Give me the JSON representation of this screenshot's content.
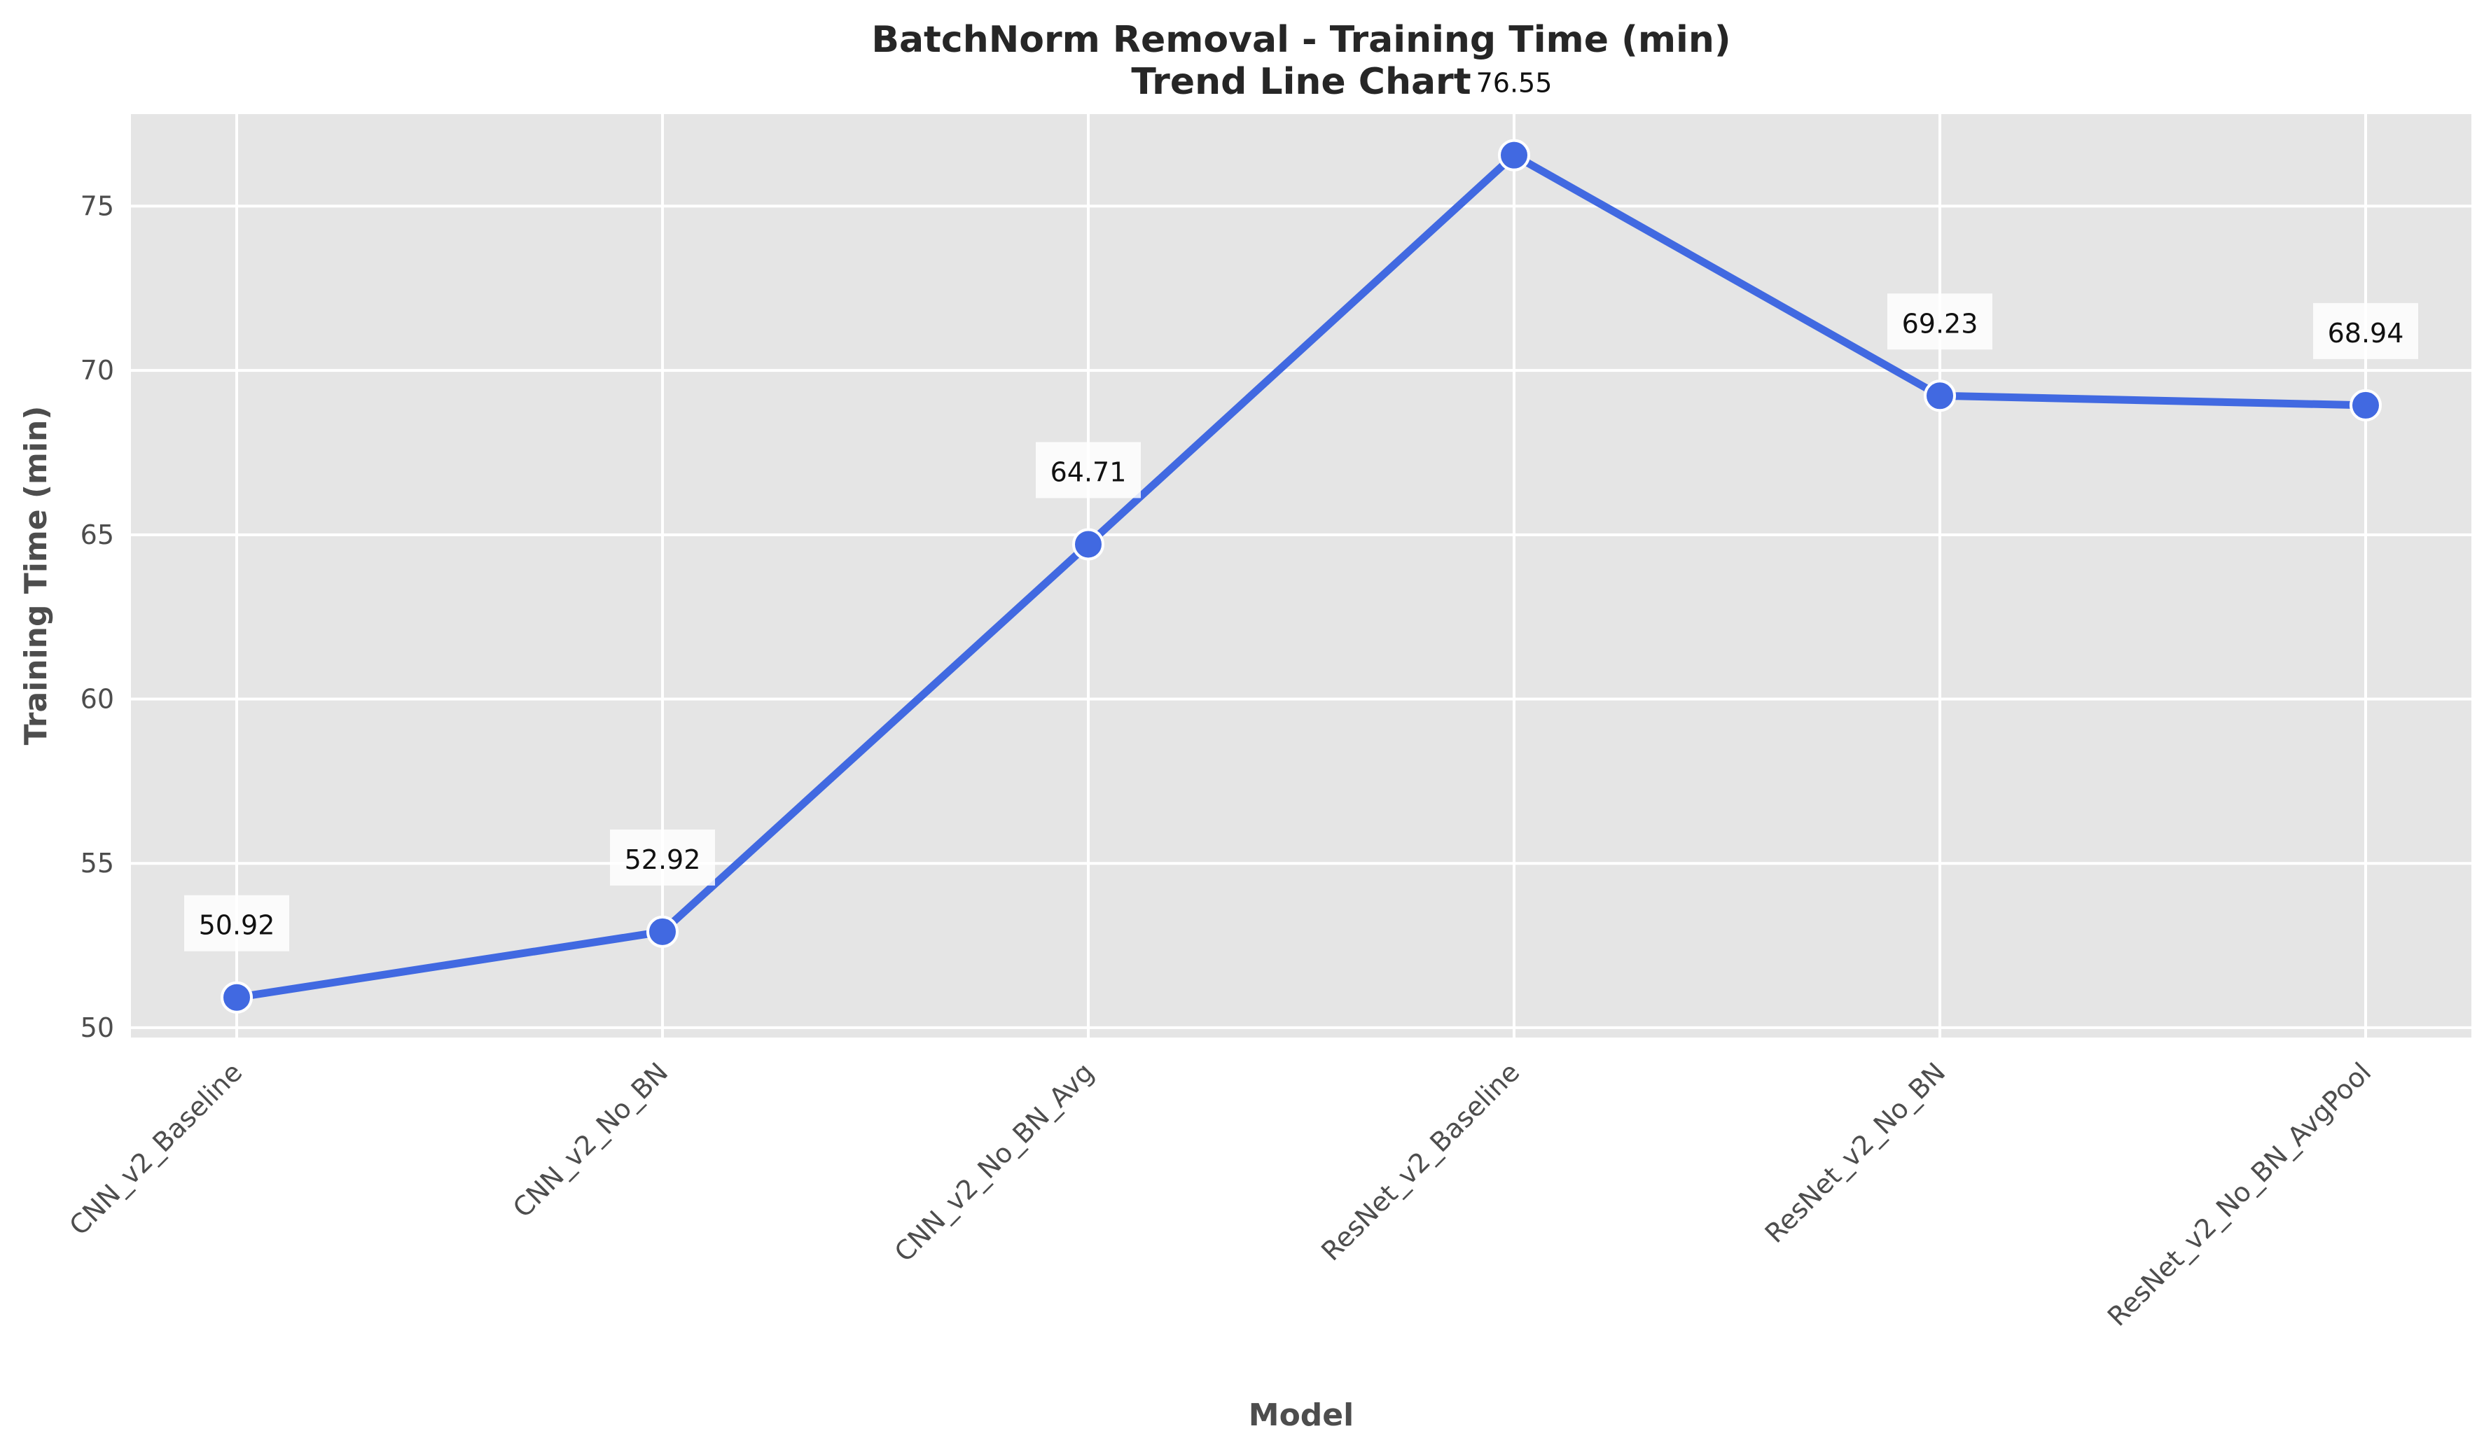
{
  "chart_data": {
    "type": "line",
    "title": "BatchNorm Removal - Training Time (min)",
    "subtitle": "Trend Line Chart",
    "xlabel": "Model",
    "ylabel": "Training Time (min)",
    "categories": [
      "CNN_v2_Baseline",
      "CNN_v2_No_BN",
      "CNN_v2_No_BN_Avg",
      "ResNet_v2_Baseline",
      "ResNet_v2_No_BN",
      "ResNet_v2_No_BN_AvgPool"
    ],
    "values": [
      50.92,
      52.92,
      64.71,
      76.55,
      69.23,
      68.94
    ],
    "data_labels": [
      "50.92",
      "52.92",
      "64.71",
      "76.55",
      "69.23",
      "68.94"
    ],
    "ylim": [
      49.7,
      77.8
    ],
    "yticks": [
      50,
      55,
      60,
      65,
      70,
      75
    ],
    "grid": true,
    "colors": {
      "line": "#4169e1",
      "plot_bg": "#e5e5e5",
      "grid": "#ffffff",
      "marker_edge": "#ffffff"
    }
  }
}
